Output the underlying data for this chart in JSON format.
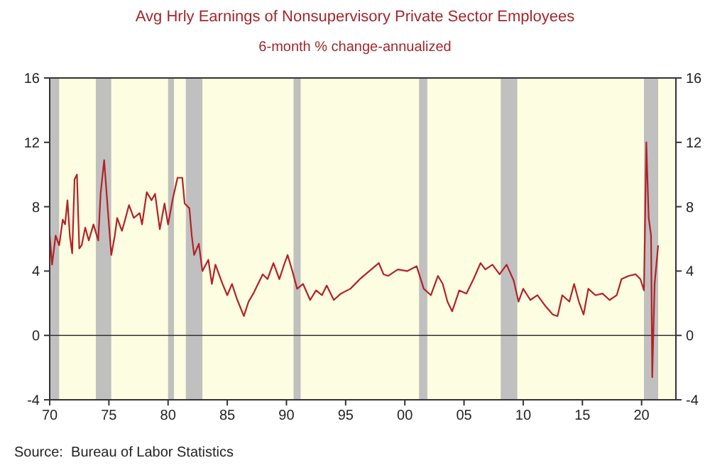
{
  "chart_data": {
    "type": "line",
    "title": "Avg Hrly Earnings of Nonsupervisory Private Sector Employees",
    "subtitle": "6-month % change-annualized",
    "annotations": [
      "Source:  Bureau of Labor Statistics"
    ],
    "xlim": [
      1970,
      2022.9
    ],
    "xticks": [
      {
        "value": 1970,
        "label": "70"
      },
      {
        "value": 1975,
        "label": "75"
      },
      {
        "value": 1980,
        "label": "80"
      },
      {
        "value": 1985,
        "label": "85"
      },
      {
        "value": 1990,
        "label": "90"
      },
      {
        "value": 1995,
        "label": "95"
      },
      {
        "value": 2000,
        "label": "00"
      },
      {
        "value": 2005,
        "label": "05"
      },
      {
        "value": 2010,
        "label": "10"
      },
      {
        "value": 2015,
        "label": "15"
      },
      {
        "value": 2020,
        "label": "20"
      }
    ],
    "ylim": [
      -4,
      16
    ],
    "yticks": [
      -4,
      0,
      4,
      8,
      12,
      16
    ],
    "y2lim": [
      -4,
      16
    ],
    "y2ticks": [
      -4,
      0,
      4,
      8,
      12,
      16
    ],
    "grid": false,
    "ref_lines": [
      {
        "axis": "y",
        "value": 0,
        "color": "#333333"
      }
    ],
    "bands": [
      {
        "axis": "x",
        "from": 1970,
        "to": 1970.8,
        "color": "#c0c0c0"
      },
      {
        "axis": "x",
        "from": 1973.9,
        "to": 1975.2,
        "color": "#c0c0c0"
      },
      {
        "axis": "x",
        "from": 1980,
        "to": 1980.5,
        "color": "#c0c0c0"
      },
      {
        "axis": "x",
        "from": 1981.5,
        "to": 1982.9,
        "color": "#c0c0c0"
      },
      {
        "axis": "x",
        "from": 1990.6,
        "to": 1991.2,
        "color": "#c0c0c0"
      },
      {
        "axis": "x",
        "from": 2001.2,
        "to": 2001.9,
        "color": "#c0c0c0"
      },
      {
        "axis": "x",
        "from": 2008.1,
        "to": 2009.5,
        "color": "#c0c0c0"
      },
      {
        "axis": "x",
        "from": 2020.2,
        "to": 2021.4,
        "color": "#c0c0c0"
      }
    ],
    "series": [
      {
        "color": "#b22228",
        "x": [
          1970.0,
          1970.2,
          1970.5,
          1970.8,
          1971.1,
          1971.3,
          1971.5,
          1971.7,
          1971.9,
          1972.1,
          1972.3,
          1972.5,
          1972.7,
          1973.0,
          1973.3,
          1973.7,
          1974.1,
          1974.3,
          1974.6,
          1974.9,
          1975.2,
          1975.5,
          1975.7,
          1976.1,
          1976.3,
          1976.7,
          1977.1,
          1977.6,
          1977.8,
          1978.2,
          1978.6,
          1978.9,
          1979.3,
          1979.7,
          1980.0,
          1980.4,
          1980.8,
          1981.2,
          1981.4,
          1981.8,
          1982.0,
          1982.2,
          1982.6,
          1982.9,
          1983.4,
          1983.7,
          1984.0,
          1984.6,
          1985.0,
          1985.4,
          1985.8,
          1986.4,
          1986.8,
          1987.2,
          1987.6,
          1988.0,
          1988.4,
          1988.9,
          1989.4,
          1989.8,
          1990.1,
          1990.5,
          1990.9,
          1991.4,
          1992.0,
          1992.5,
          1993.0,
          1993.4,
          1994.0,
          1994.6,
          1995.4,
          1996.2,
          1997.0,
          1997.8,
          1998.2,
          1998.6,
          1999.4,
          2000.2,
          2001.0,
          2001.6,
          2002.2,
          2002.8,
          2003.2,
          2003.6,
          2004.0,
          2004.6,
          2005.2,
          2005.8,
          2006.4,
          2006.8,
          2007.4,
          2008.0,
          2008.6,
          2009.2,
          2009.6,
          2010.0,
          2010.6,
          2011.2,
          2011.9,
          2012.5,
          2012.9,
          2013.3,
          2013.9,
          2014.3,
          2014.7,
          2015.1,
          2015.5,
          2016.1,
          2016.7,
          2017.3,
          2017.9,
          2018.3,
          2018.9,
          2019.5,
          2019.9,
          2020.2,
          2020.4,
          2020.6,
          2020.8,
          2020.9,
          2021.1,
          2021.4
        ],
        "values": [
          6.2,
          4.4,
          6.2,
          5.6,
          7.2,
          6.9,
          8.4,
          6.2,
          5.1,
          9.7,
          10.0,
          5.4,
          5.6,
          6.7,
          5.9,
          6.9,
          5.9,
          8.8,
          10.9,
          7.9,
          5.0,
          6.2,
          7.3,
          6.5,
          7.0,
          8.1,
          7.3,
          7.6,
          6.9,
          8.9,
          8.4,
          8.8,
          6.6,
          8.2,
          6.9,
          8.5,
          9.8,
          9.8,
          8.2,
          7.9,
          6.2,
          5.0,
          5.7,
          4.0,
          4.7,
          3.2,
          4.4,
          3.2,
          2.5,
          3.2,
          2.3,
          1.2,
          2.1,
          2.6,
          3.2,
          3.8,
          3.5,
          4.5,
          3.5,
          4.4,
          5.0,
          4.0,
          2.9,
          3.2,
          2.2,
          2.8,
          2.5,
          3.1,
          2.2,
          2.6,
          2.9,
          3.5,
          4.0,
          4.5,
          3.8,
          3.7,
          4.1,
          4.0,
          4.3,
          2.9,
          2.5,
          3.7,
          3.2,
          2.1,
          1.5,
          2.8,
          2.6,
          3.5,
          4.5,
          4.1,
          4.4,
          3.8,
          4.4,
          3.4,
          2.1,
          2.9,
          2.2,
          2.5,
          1.8,
          1.3,
          1.2,
          2.5,
          2.1,
          3.2,
          2.1,
          1.3,
          2.9,
          2.5,
          2.6,
          2.2,
          2.5,
          3.5,
          3.7,
          3.8,
          3.5,
          2.8,
          12.0,
          7.3,
          6.2,
          -2.6,
          3.2,
          5.6
        ]
      }
    ]
  }
}
